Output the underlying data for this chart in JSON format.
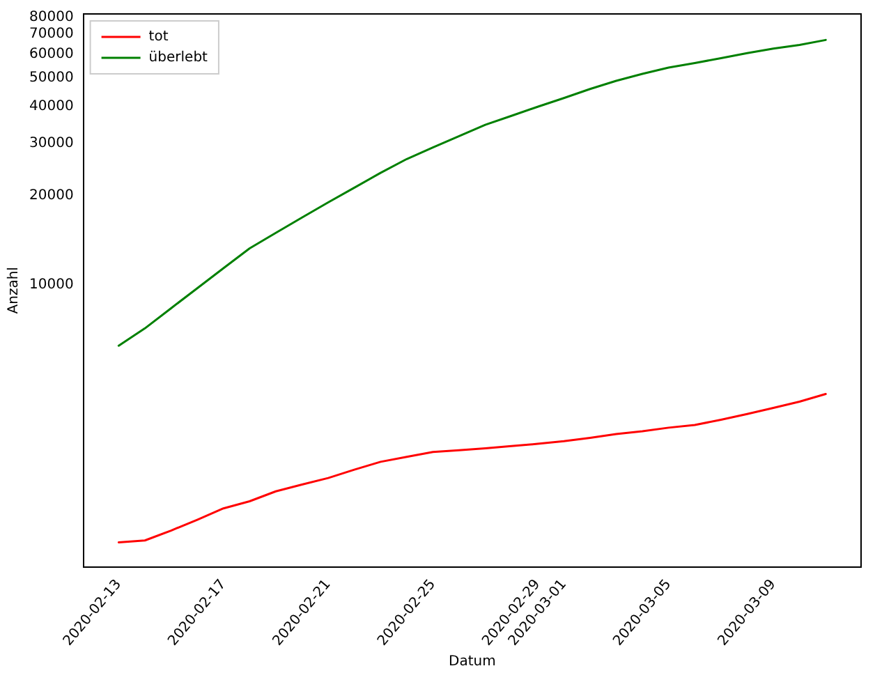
{
  "chart_data": {
    "type": "line",
    "xlabel": "Datum",
    "ylabel": "Anzahl",
    "x": [
      "2020-02-13",
      "2020-02-14",
      "2020-02-15",
      "2020-02-16",
      "2020-02-17",
      "2020-02-18",
      "2020-02-19",
      "2020-02-20",
      "2020-02-21",
      "2020-02-22",
      "2020-02-23",
      "2020-02-24",
      "2020-02-25",
      "2020-02-26",
      "2020-02-27",
      "2020-02-28",
      "2020-02-29",
      "2020-03-01",
      "2020-03-02",
      "2020-03-03",
      "2020-03-04",
      "2020-03-05",
      "2020-03-06",
      "2020-03-07",
      "2020-03-08",
      "2020-03-09",
      "2020-03-10",
      "2020-03-11"
    ],
    "series": [
      {
        "name": "tot",
        "color": "#ff0000",
        "values": [
          1360,
          1380,
          1490,
          1620,
          1770,
          1870,
          2020,
          2130,
          2240,
          2390,
          2540,
          2640,
          2740,
          2780,
          2820,
          2870,
          2920,
          2980,
          3060,
          3150,
          3220,
          3310,
          3380,
          3520,
          3680,
          3860,
          4050,
          4300
        ]
      },
      {
        "name": "überlebt",
        "color": "#008000",
        "values": [
          6250,
          7150,
          8360,
          9760,
          11400,
          13300,
          15000,
          16900,
          19000,
          21300,
          23900,
          26600,
          29100,
          31800,
          34700,
          37200,
          39900,
          42700,
          45800,
          48800,
          51500,
          54100,
          56000,
          58200,
          60500,
          62700,
          64500,
          67000
        ]
      }
    ],
    "log": "y",
    "xlim": [
      "2020-02-11T15:36",
      "2020-03-12T08:24"
    ],
    "ylim": [
      1125,
      82000
    ],
    "xticks": [
      "2020-02-13",
      "2020-02-17",
      "2020-02-21",
      "2020-02-25",
      "2020-02-29",
      "2020-03-01",
      "2020-03-05",
      "2020-03-09"
    ],
    "yticks": [
      10000,
      20000,
      30000,
      40000,
      50000,
      60000,
      70000,
      80000
    ],
    "grid": false,
    "legend": "top left",
    "marker": "none",
    "line_style": "solid"
  }
}
